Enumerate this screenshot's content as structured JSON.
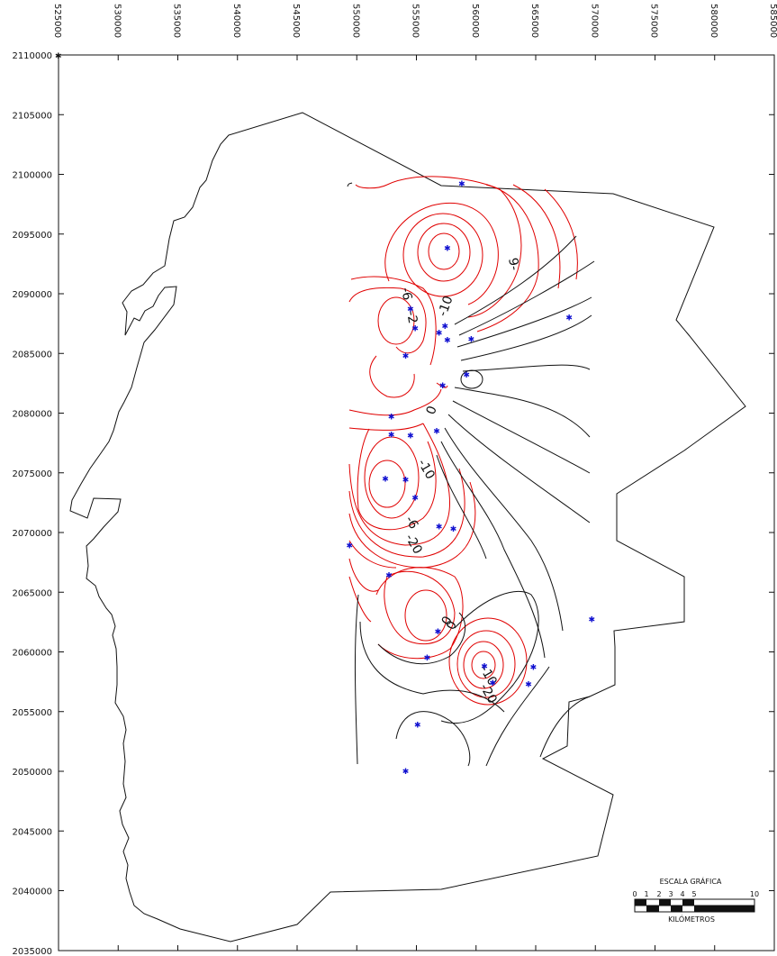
{
  "map": {
    "x_axis": {
      "unit": "m",
      "ticks": [
        "525000",
        "530000",
        "535000",
        "540000",
        "545000",
        "550000",
        "555000",
        "560000",
        "565000",
        "570000",
        "575000",
        "580000",
        "585000"
      ]
    },
    "y_axis": {
      "unit": "m",
      "ticks": [
        "2110000",
        "2105000",
        "2100000",
        "2095000",
        "2090000",
        "2085000",
        "2080000",
        "2075000",
        "2070000",
        "2065000",
        "2060000",
        "2055000",
        "2050000",
        "2045000",
        "2040000",
        "2035000"
      ]
    },
    "contour_labels": [
      "9-",
      "-6",
      "-2",
      "-10",
      "0",
      "0",
      "-10",
      "-6",
      "-20",
      "0",
      "-10",
      "-20"
    ],
    "positive_contour_color": "#000000",
    "negative_contour_color": "#e00000",
    "well_marker_color": "#1010d0",
    "wells": [
      {
        "e": 558800,
        "n": 2099200
      },
      {
        "e": 557600,
        "n": 2093800
      },
      {
        "e": 557400,
        "n": 2087300
      },
      {
        "e": 554500,
        "n": 2088700
      },
      {
        "e": 554900,
        "n": 2087100
      },
      {
        "e": 556900,
        "n": 2086700
      },
      {
        "e": 557600,
        "n": 2086100
      },
      {
        "e": 559600,
        "n": 2086200
      },
      {
        "e": 554100,
        "n": 2084800
      },
      {
        "e": 559200,
        "n": 2083200
      },
      {
        "e": 557200,
        "n": 2082300
      },
      {
        "e": 552900,
        "n": 2079700
      },
      {
        "e": 556700,
        "n": 2078500
      },
      {
        "e": 552900,
        "n": 2078200
      },
      {
        "e": 554500,
        "n": 2078100
      },
      {
        "e": 552400,
        "n": 2074500
      },
      {
        "e": 554100,
        "n": 2074400
      },
      {
        "e": 554900,
        "n": 2072900
      },
      {
        "e": 556900,
        "n": 2070500
      },
      {
        "e": 558100,
        "n": 2070300
      },
      {
        "e": 549400,
        "n": 2068900
      },
      {
        "e": 552700,
        "n": 2066400
      },
      {
        "e": 567800,
        "n": 2088000
      },
      {
        "e": 569700,
        "n": 2062700
      },
      {
        "e": 556800,
        "n": 2061700
      },
      {
        "e": 555900,
        "n": 2059500
      },
      {
        "e": 560700,
        "n": 2058800
      },
      {
        "e": 561400,
        "n": 2057400
      },
      {
        "e": 564400,
        "n": 2057300
      },
      {
        "e": 564800,
        "n": 2058700
      },
      {
        "e": 555100,
        "n": 2053900
      },
      {
        "e": 554100,
        "n": 2050000
      }
    ],
    "scale": {
      "title": "ESCALA GRÁFICA",
      "numbers": [
        "0",
        "1",
        "2",
        "3",
        "4",
        "5",
        "10"
      ],
      "units": "KILÓMETROS"
    }
  }
}
